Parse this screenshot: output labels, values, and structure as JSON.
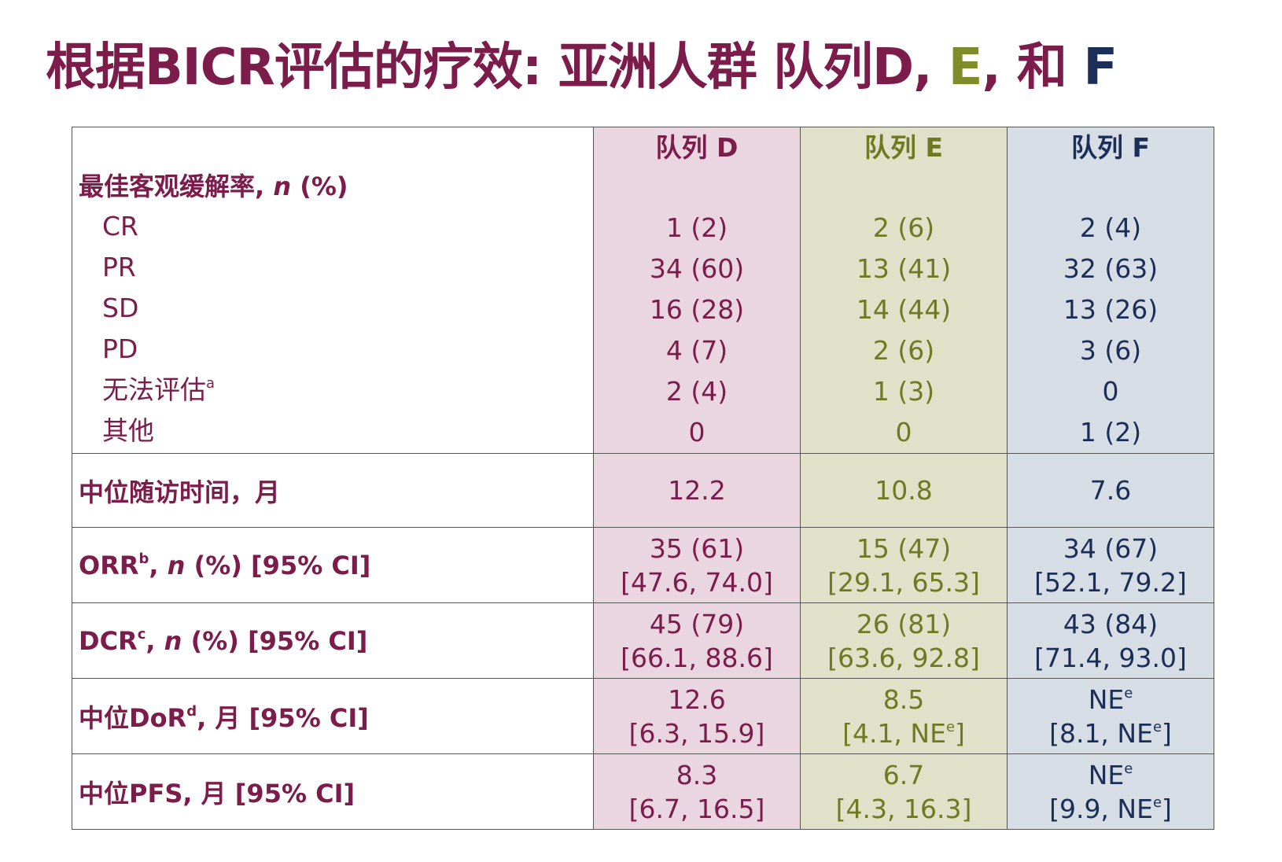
{
  "title": {
    "part1": "根据BICR评估的疗效: 亚洲人群 队列D,",
    "part_e": "E",
    "sep": ",",
    "part_and": "和",
    "part_f": "F"
  },
  "colors": {
    "d": "#7b1c4b",
    "e": "#6d7a22",
    "f": "#1b2e58"
  },
  "headers": {
    "d": "队列 D",
    "e": "队列 E",
    "f": "队列 F"
  },
  "best_response": {
    "label": "最佳客观缓解率,",
    "n": "n",
    "pct": "(%)",
    "rows": [
      {
        "label": "CR",
        "sup": "",
        "d": "1 (2)",
        "e": "2 (6)",
        "f": "2 (4)"
      },
      {
        "label": "PR",
        "sup": "",
        "d": "34 (60)",
        "e": "13 (41)",
        "f": "32 (63)"
      },
      {
        "label": "SD",
        "sup": "",
        "d": "16 (28)",
        "e": "14 (44)",
        "f": "13 (26)"
      },
      {
        "label": "PD",
        "sup": "",
        "d": "4 (7)",
        "e": "2 (6)",
        "f": "3 (6)"
      },
      {
        "label": "无法评估",
        "sup": "a",
        "d": "2 (4)",
        "e": "1 (3)",
        "f": "0"
      },
      {
        "label": "其他",
        "sup": "",
        "d": "0",
        "e": "0",
        "f": "1 (2)"
      }
    ]
  },
  "followup": {
    "label": "中位随访时间，月",
    "d": "12.2",
    "e": "10.8",
    "f": "7.6"
  },
  "orr": {
    "label": "ORR",
    "sup": "b",
    "n": "n",
    "rest": "(%) [95% CI]",
    "d": {
      "v": "35 (61)",
      "ci": "[47.6, 74.0]"
    },
    "e": {
      "v": "15 (47)",
      "ci": "[29.1, 65.3]"
    },
    "f": {
      "v": "34 (67)",
      "ci": "[52.1, 79.2]"
    }
  },
  "dcr": {
    "label": "DCR",
    "sup": "c",
    "n": "n",
    "rest": "(%) [95% CI]",
    "d": {
      "v": "45 (79)",
      "ci": "[66.1, 88.6]"
    },
    "e": {
      "v": "26 (81)",
      "ci": "[63.6, 92.8]"
    },
    "f": {
      "v": "43 (84)",
      "ci": "[71.4, 93.0]"
    }
  },
  "dor": {
    "label": "中位DoR",
    "sup": "d",
    "rest": ", 月 [95% CI]",
    "d": {
      "v": "12.6",
      "ci": "[6.3, 15.9]"
    },
    "e": {
      "v": "8.5",
      "ci_a": "[4.1, NE",
      "ci_sup": "e",
      "ci_b": "]"
    },
    "f": {
      "v": "NE",
      "v_sup": "e",
      "ci_a": "[8.1, NE",
      "ci_sup": "e",
      "ci_b": "]"
    }
  },
  "pfs": {
    "label": "中位PFS, 月 [95% CI]",
    "d": {
      "v": "8.3",
      "ci": "[6.7, 16.5]"
    },
    "e": {
      "v": "6.7",
      "ci": "[4.3, 16.3]"
    },
    "f": {
      "v": "NE",
      "v_sup": "e",
      "ci_a": "[9.9, NE",
      "ci_sup": "e",
      "ci_b": "]"
    }
  }
}
